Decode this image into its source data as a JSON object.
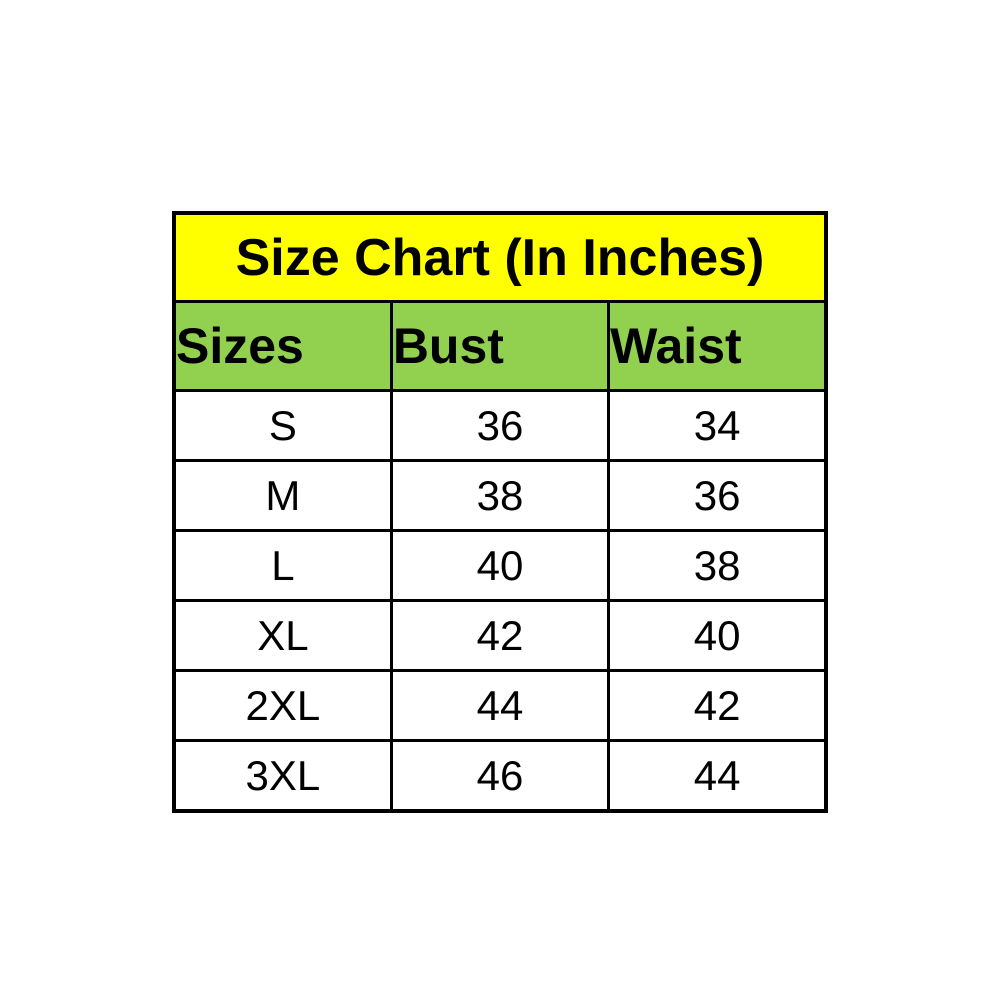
{
  "chart_data": {
    "type": "table",
    "title": "Size Chart (In Inches)",
    "columns": [
      "Sizes",
      "Bust",
      "Waist"
    ],
    "rows": [
      [
        "S",
        "36",
        "34"
      ],
      [
        "M",
        "38",
        "36"
      ],
      [
        "L",
        "40",
        "38"
      ],
      [
        "XL",
        "42",
        "40"
      ],
      [
        "2XL",
        "44",
        "42"
      ],
      [
        "3XL",
        "46",
        "44"
      ]
    ]
  },
  "colors": {
    "title_bg": "#ffff00",
    "header_bg": "#92d050",
    "row_bg": "#ffffff",
    "border": "#000000",
    "text": "#000000",
    "page_bg": "#ffffff"
  }
}
